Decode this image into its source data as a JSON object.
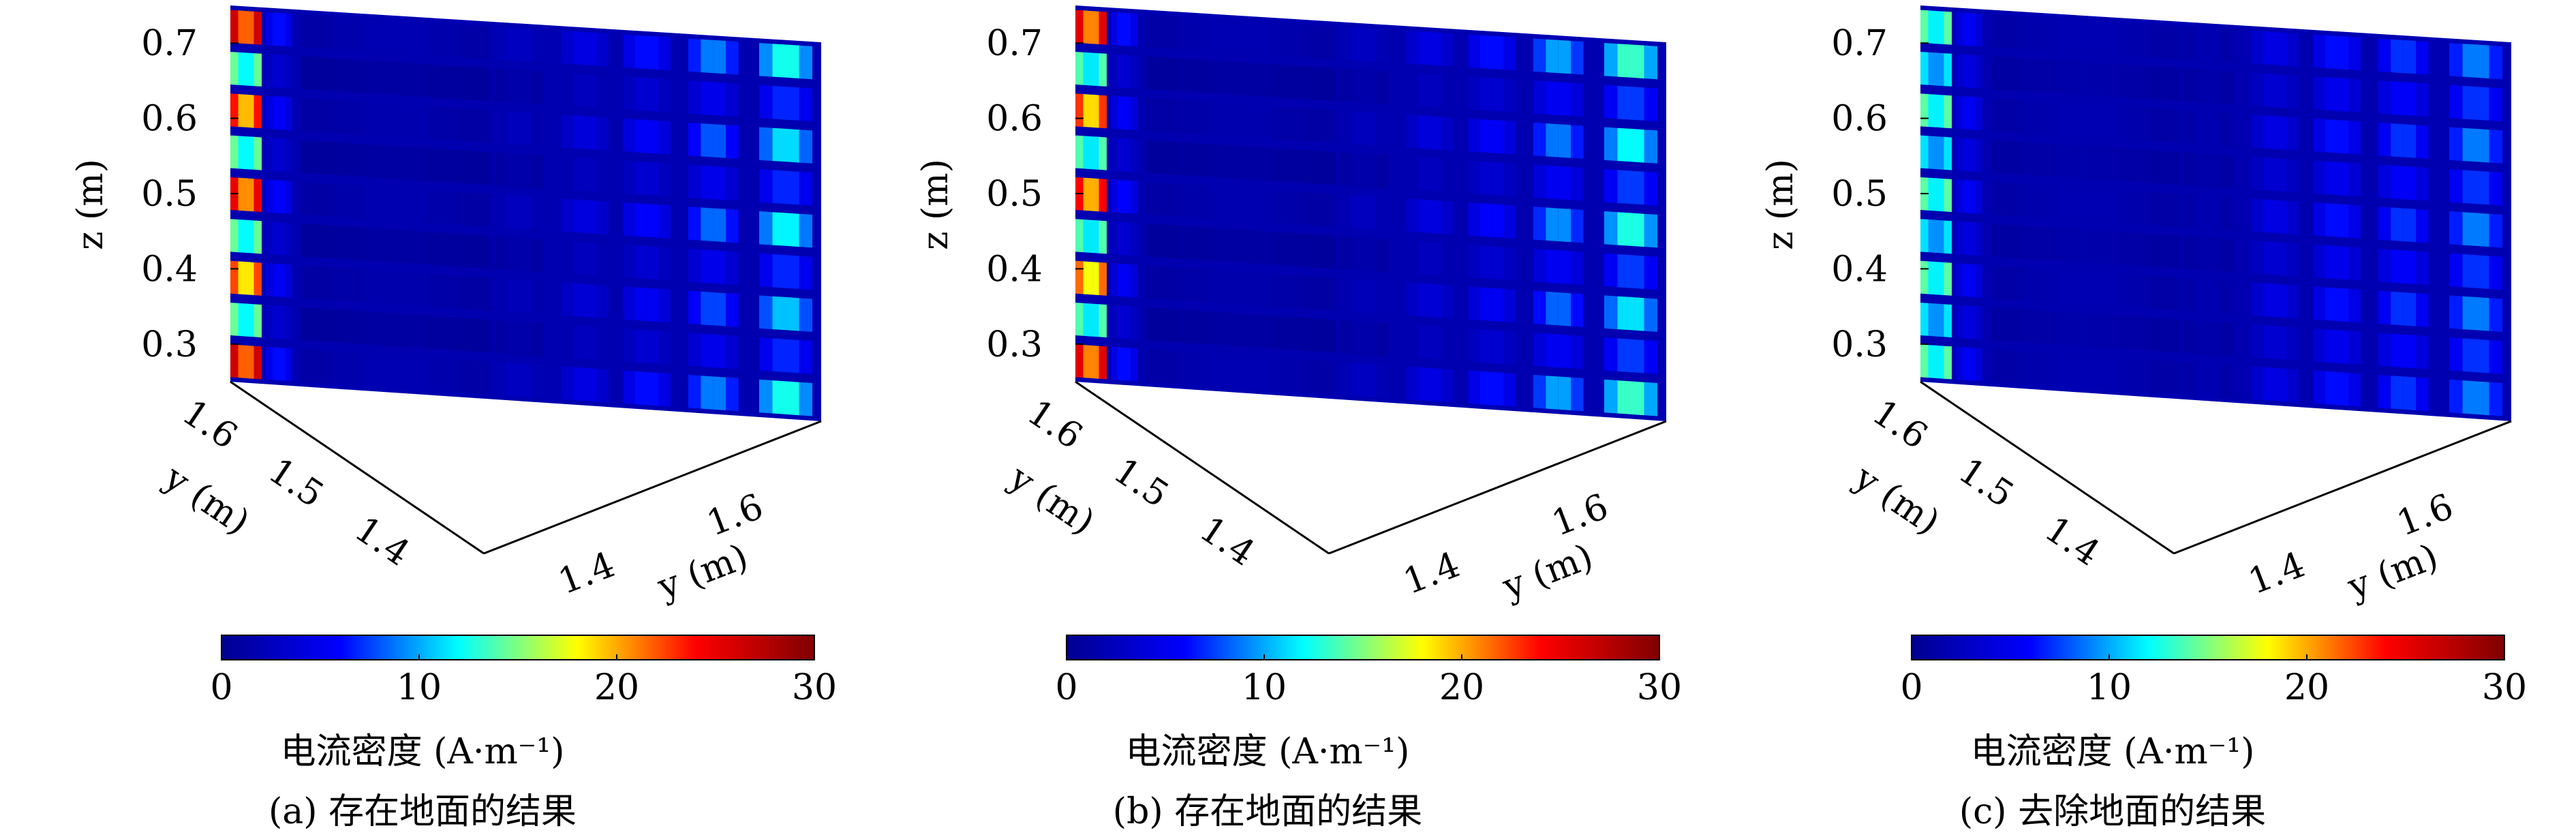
{
  "colormap": {
    "name": "jet",
    "stops": [
      "#00008f",
      "#0000ff",
      "#00ffff",
      "#ffff00",
      "#ff0000",
      "#800000"
    ],
    "range": [
      0,
      30
    ]
  },
  "chart_data": [
    {
      "type": "heatmap",
      "view": "3d-surface",
      "caption": "(a) 存在地面的结果",
      "zlabel": "z (m)",
      "zticks": [
        "0.3",
        "0.4",
        "0.5",
        "0.6",
        "0.7"
      ],
      "zlim": [
        0.25,
        0.75
      ],
      "left_axis_label": "y (m)",
      "left_axis_ticks": [
        "1.6",
        "1.5",
        "1.4"
      ],
      "bottom_axis_label": "y (m)",
      "bottom_axis_ticks": [
        "1.4",
        "1.6"
      ],
      "colorbar_label": "电流密度 (A·m⁻¹)",
      "colorbar_ticks": [
        "0",
        "10",
        "20",
        "30"
      ],
      "clim": [
        0,
        30
      ],
      "column_peaks": [
        26,
        7,
        2,
        3,
        5,
        7,
        10,
        14
      ],
      "row_pattern": [
        1.0,
        0.55,
        0.9,
        0.55,
        0.95,
        0.55,
        0.85,
        0.55,
        1.0
      ]
    },
    {
      "type": "heatmap",
      "view": "3d-surface",
      "caption": "(b) 存在地面的结果",
      "zlabel": "z (m)",
      "zticks": [
        "0.3",
        "0.4",
        "0.5",
        "0.6",
        "0.7"
      ],
      "zlim": [
        0.25,
        0.75
      ],
      "left_axis_label": "y (m)",
      "left_axis_ticks": [
        "1.6",
        "1.5",
        "1.4"
      ],
      "bottom_axis_label": "y (m)",
      "bottom_axis_ticks": [
        "1.4",
        "1.6"
      ],
      "colorbar_label": "电流密度 (A·m⁻¹)",
      "colorbar_ticks": [
        "0",
        "10",
        "20",
        "30"
      ],
      "clim": [
        0,
        30
      ],
      "column_peaks": [
        25,
        7,
        2,
        3,
        5,
        7,
        11,
        15
      ],
      "row_pattern": [
        1.0,
        0.55,
        0.9,
        0.55,
        0.95,
        0.55,
        0.85,
        0.55,
        1.0
      ]
    },
    {
      "type": "heatmap",
      "view": "3d-surface",
      "caption": "(c) 去除地面的结果",
      "zlabel": "z (m)",
      "zticks": [
        "0.3",
        "0.4",
        "0.5",
        "0.6",
        "0.7"
      ],
      "zlim": [
        0.25,
        0.75
      ],
      "left_axis_label": "y (m)",
      "left_axis_ticks": [
        "1.6",
        "1.5",
        "1.4"
      ],
      "bottom_axis_label": "y (m)",
      "bottom_axis_ticks": [
        "1.4",
        "1.6"
      ],
      "colorbar_label": "电流密度 (A·m⁻¹)",
      "colorbar_ticks": [
        "0",
        "10",
        "20",
        "30"
      ],
      "clim": [
        0,
        30
      ],
      "column_peaks": [
        14,
        6,
        2,
        2,
        5,
        7,
        8,
        10
      ],
      "row_pattern": [
        1.0,
        0.8,
        1.0,
        0.8,
        1.0,
        0.8,
        1.0,
        0.8,
        1.0
      ]
    }
  ]
}
